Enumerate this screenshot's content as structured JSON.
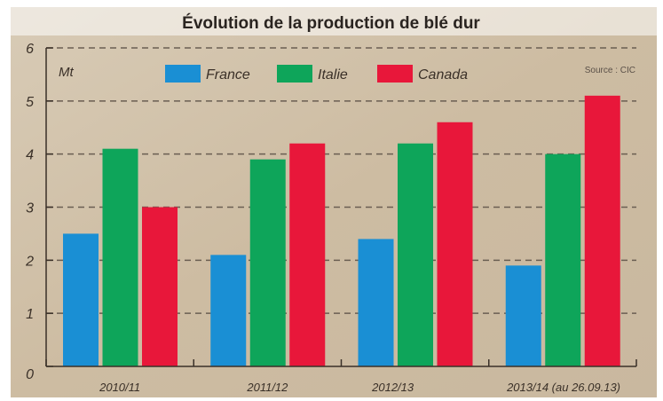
{
  "chart_data": {
    "type": "bar",
    "title": "Évolution de la production de blé dur",
    "ylabel": "Mt",
    "xlabel": "",
    "source": "Source : CIC",
    "ylim": [
      0,
      6
    ],
    "yticks": [
      "0",
      "1",
      "2",
      "3",
      "4",
      "5",
      "6"
    ],
    "grid": true,
    "legend_position": "top",
    "categories": [
      "2010/11",
      "2011/12",
      "2012/13",
      "2013/14 (au 26.09.13)"
    ],
    "series": [
      {
        "name": "France",
        "color": "#1a8fd4",
        "values": [
          2.5,
          2.1,
          2.4,
          1.9
        ]
      },
      {
        "name": "Italie",
        "color": "#0ea55a",
        "values": [
          4.1,
          3.9,
          4.2,
          4.0
        ]
      },
      {
        "name": "Canada",
        "color": "#e8173a",
        "values": [
          3.0,
          4.2,
          4.6,
          5.1
        ]
      }
    ]
  }
}
